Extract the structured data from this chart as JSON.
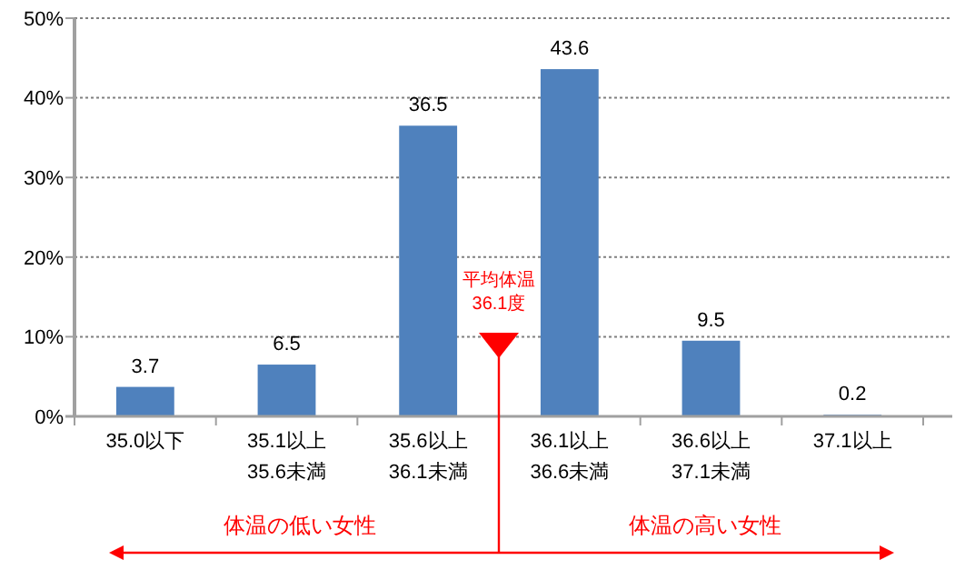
{
  "chart_data": {
    "type": "bar",
    "categories": [
      "35.0以下",
      "35.1以上\n35.6未満",
      "35.6以上\n36.1未満",
      "36.1以上\n36.6未満",
      "36.6以上\n37.1未満",
      "37.1以上"
    ],
    "values": [
      3.7,
      6.5,
      36.5,
      43.6,
      9.5,
      0.2
    ],
    "color": "#4f81bd",
    "ylim": [
      0,
      50
    ],
    "yticks": [
      {
        "value": 0,
        "label": "0%"
      },
      {
        "value": 10,
        "label": "10%"
      },
      {
        "value": 20,
        "label": "20%"
      },
      {
        "value": 30,
        "label": "30%"
      },
      {
        "value": 40,
        "label": "40%"
      },
      {
        "value": 50,
        "label": "50%"
      }
    ],
    "grid": "y",
    "data_labels": true,
    "annotations": [
      "体温の低い女性",
      "体温の高い女性",
      "平均体温\n36.1度"
    ]
  }
}
